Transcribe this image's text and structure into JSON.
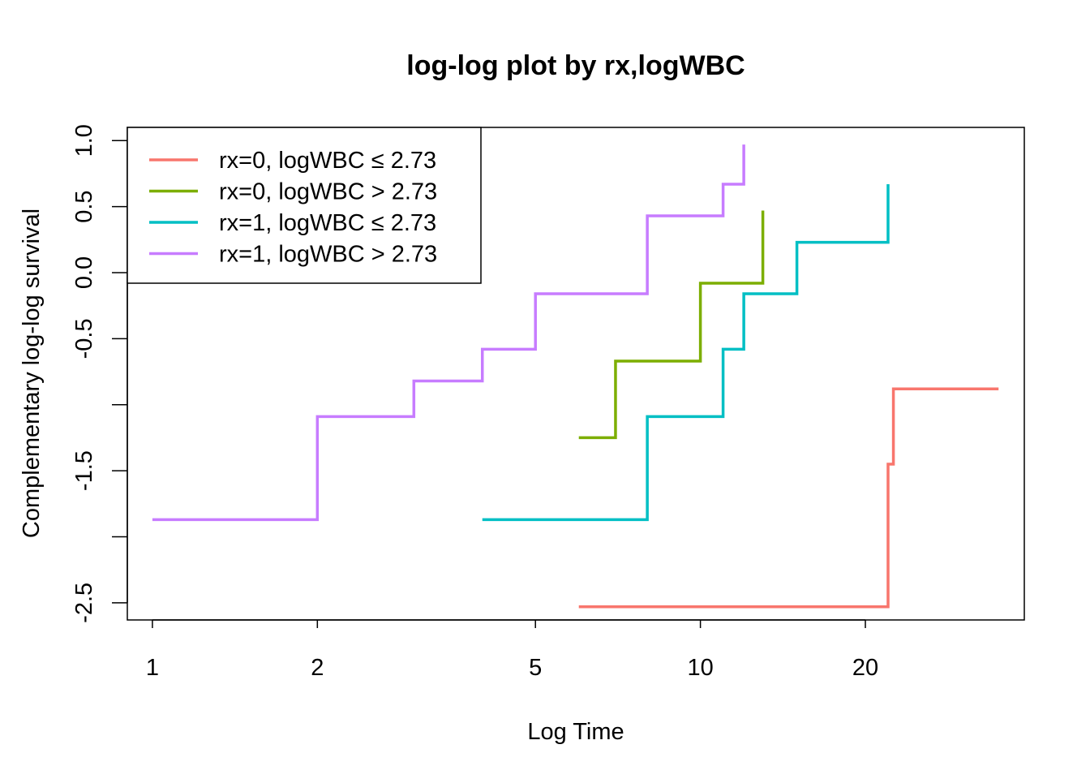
{
  "chart_data": {
    "type": "line",
    "step": true,
    "title": "log-log plot by rx,logWBC",
    "xlabel": "Log Time",
    "ylabel": "Complementary log-log survival",
    "xscale": "log",
    "xlim": [
      0.9,
      39
    ],
    "ylim": [
      -2.63,
      1.1
    ],
    "x_ticks": [
      1,
      2,
      5,
      10,
      20
    ],
    "x_tick_labels": [
      "1",
      "2",
      "5",
      "10",
      "20"
    ],
    "y_ticks": [
      1.0,
      0.5,
      0.0,
      -0.5,
      -1.0,
      -1.5,
      -2.0,
      -2.5
    ],
    "y_tick_labels": [
      "1.0",
      "0.5",
      "0.0",
      "-0.5",
      "",
      "-1.5",
      "",
      "-2.5"
    ],
    "grid": false,
    "legend_position": "top-left",
    "series": [
      {
        "name": "rx=0, logWBC ≤ 2.73",
        "color": "#F8766D",
        "x": [
          6,
          22,
          22.5,
          35
        ],
        "y": [
          -2.53,
          -1.45,
          -0.88,
          -0.88
        ]
      },
      {
        "name": "rx=0, logWBC > 2.73",
        "color": "#7CAE00",
        "x": [
          6,
          7,
          10,
          13,
          13
        ],
        "y": [
          -1.25,
          -0.67,
          -0.08,
          -0.08,
          0.47
        ]
      },
      {
        "name": "rx=1, logWBC ≤ 2.73",
        "color": "#00BFC4",
        "x": [
          4,
          8,
          11,
          12,
          15,
          22,
          22
        ],
        "y": [
          -1.87,
          -1.09,
          -0.58,
          -0.16,
          0.23,
          0.23,
          0.67
        ]
      },
      {
        "name": "rx=1, logWBC > 2.73",
        "color": "#C77CFF",
        "x": [
          1,
          2,
          3,
          4,
          5,
          8,
          11,
          12,
          12
        ],
        "y": [
          -1.87,
          -1.09,
          -0.82,
          -0.58,
          -0.16,
          0.43,
          0.67,
          0.67,
          0.97
        ]
      }
    ]
  }
}
